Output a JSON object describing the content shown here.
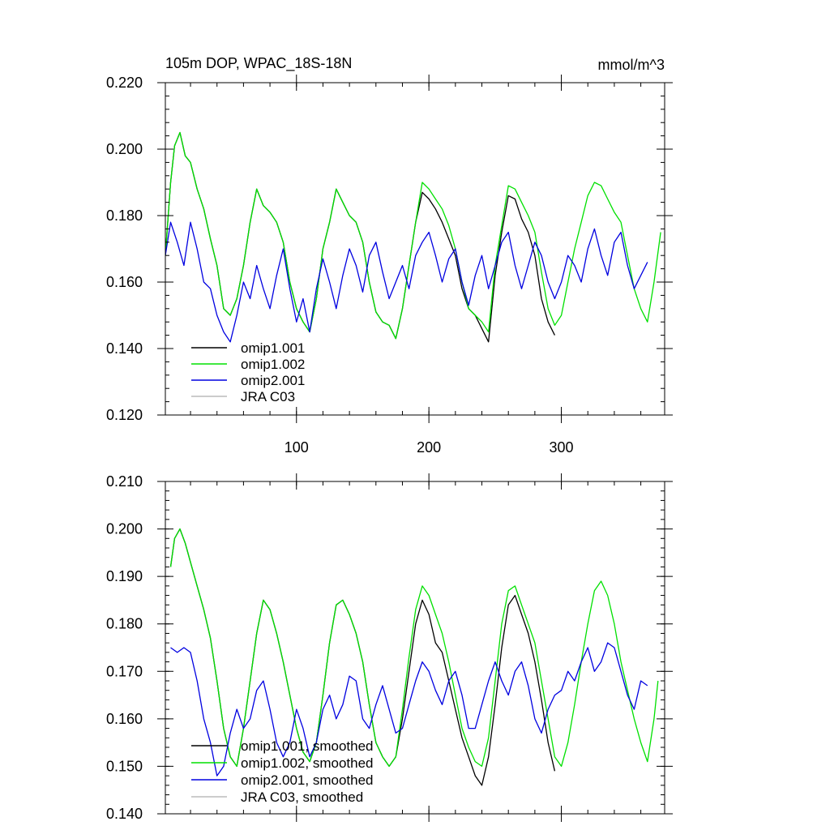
{
  "chart_data": [
    {
      "type": "line",
      "title": "105m DOP, WPAC_18S-18N",
      "units": "mmol/m^3",
      "xlim": [
        1,
        378
      ],
      "ylim": [
        0.12,
        0.22
      ],
      "yticks": [
        0.12,
        0.14,
        0.16,
        0.18,
        0.2,
        0.22
      ],
      "ytick_labels": [
        "0.120",
        "0.140",
        "0.160",
        "0.180",
        "0.200",
        "0.220"
      ],
      "xticks": [
        100,
        200,
        300
      ],
      "xtick_labels": [
        "100",
        "200",
        "300"
      ],
      "legend_position": "lower-left",
      "series": [
        {
          "name": "omip1.001",
          "color": "#000000",
          "x": [
            1,
            5,
            8,
            12,
            16,
            20,
            25,
            30,
            35,
            40,
            45,
            50,
            55,
            60,
            65,
            70,
            75,
            80,
            85,
            90,
            95,
            100,
            105,
            110,
            115,
            120,
            125,
            130,
            135,
            140,
            145,
            150,
            155,
            160,
            165,
            170,
            175,
            180,
            185,
            190,
            195,
            200,
            205,
            210,
            215,
            220,
            225,
            230,
            235,
            240,
            245,
            250,
            255,
            260,
            265,
            270,
            275,
            280,
            285,
            290,
            295
          ],
          "y": [
            0.168,
            0.19,
            0.201,
            0.205,
            0.198,
            0.196,
            0.188,
            0.182,
            0.173,
            0.165,
            0.152,
            0.15,
            0.155,
            0.165,
            0.178,
            0.188,
            0.183,
            0.181,
            0.178,
            0.172,
            0.16,
            0.152,
            0.148,
            0.145,
            0.155,
            0.17,
            0.178,
            0.188,
            0.184,
            0.18,
            0.178,
            0.172,
            0.16,
            0.151,
            0.148,
            0.147,
            0.143,
            0.152,
            0.165,
            0.178,
            0.187,
            0.185,
            0.182,
            0.178,
            0.173,
            0.168,
            0.158,
            0.152,
            0.15,
            0.146,
            0.142,
            0.162,
            0.175,
            0.186,
            0.185,
            0.179,
            0.175,
            0.168,
            0.155,
            0.148,
            0.144
          ]
        },
        {
          "name": "omip1.002",
          "color": "#00e000",
          "x": [
            1,
            5,
            8,
            12,
            16,
            20,
            25,
            30,
            35,
            40,
            45,
            50,
            55,
            60,
            65,
            70,
            75,
            80,
            85,
            90,
            95,
            100,
            105,
            110,
            115,
            120,
            125,
            130,
            135,
            140,
            145,
            150,
            155,
            160,
            165,
            170,
            175,
            180,
            185,
            190,
            195,
            200,
            205,
            210,
            215,
            220,
            225,
            230,
            235,
            240,
            245,
            250,
            255,
            260,
            265,
            270,
            275,
            280,
            285,
            290,
            295,
            300,
            305,
            310,
            315,
            320,
            325,
            330,
            335,
            340,
            345,
            350,
            355,
            360,
            365,
            370,
            375
          ],
          "y": [
            0.168,
            0.19,
            0.201,
            0.205,
            0.198,
            0.196,
            0.188,
            0.182,
            0.173,
            0.165,
            0.152,
            0.15,
            0.155,
            0.165,
            0.178,
            0.188,
            0.183,
            0.181,
            0.178,
            0.172,
            0.16,
            0.152,
            0.148,
            0.145,
            0.155,
            0.17,
            0.178,
            0.188,
            0.184,
            0.18,
            0.178,
            0.172,
            0.16,
            0.151,
            0.148,
            0.147,
            0.143,
            0.152,
            0.165,
            0.178,
            0.19,
            0.188,
            0.185,
            0.182,
            0.177,
            0.17,
            0.16,
            0.152,
            0.15,
            0.148,
            0.145,
            0.165,
            0.177,
            0.189,
            0.188,
            0.184,
            0.18,
            0.175,
            0.163,
            0.152,
            0.147,
            0.15,
            0.16,
            0.17,
            0.178,
            0.186,
            0.19,
            0.189,
            0.185,
            0.181,
            0.178,
            0.168,
            0.158,
            0.152,
            0.148,
            0.16,
            0.175
          ]
        },
        {
          "name": "omip2.001",
          "color": "#0000e0",
          "x": [
            1,
            5,
            10,
            15,
            20,
            25,
            30,
            35,
            40,
            45,
            50,
            55,
            60,
            65,
            70,
            75,
            80,
            85,
            90,
            95,
            100,
            105,
            110,
            115,
            120,
            125,
            130,
            135,
            140,
            145,
            150,
            155,
            160,
            165,
            170,
            175,
            180,
            185,
            190,
            195,
            200,
            205,
            210,
            215,
            220,
            225,
            230,
            235,
            240,
            245,
            250,
            255,
            260,
            265,
            270,
            275,
            280,
            285,
            290,
            295,
            300,
            305,
            310,
            315,
            320,
            325,
            330,
            335,
            340,
            345,
            350,
            355,
            360,
            365
          ],
          "y": [
            0.168,
            0.178,
            0.172,
            0.165,
            0.178,
            0.17,
            0.16,
            0.158,
            0.15,
            0.145,
            0.142,
            0.15,
            0.16,
            0.155,
            0.165,
            0.158,
            0.152,
            0.162,
            0.17,
            0.158,
            0.148,
            0.155,
            0.145,
            0.158,
            0.167,
            0.16,
            0.152,
            0.162,
            0.17,
            0.165,
            0.157,
            0.168,
            0.172,
            0.163,
            0.155,
            0.16,
            0.165,
            0.158,
            0.168,
            0.172,
            0.175,
            0.168,
            0.16,
            0.167,
            0.17,
            0.16,
            0.153,
            0.162,
            0.168,
            0.158,
            0.165,
            0.172,
            0.175,
            0.165,
            0.158,
            0.165,
            0.172,
            0.168,
            0.16,
            0.155,
            0.16,
            0.168,
            0.165,
            0.16,
            0.17,
            0.176,
            0.168,
            0.162,
            0.172,
            0.175,
            0.165,
            0.158,
            0.162,
            0.166
          ]
        },
        {
          "name": "JRA C03",
          "color": "#bbbbbb",
          "x": [],
          "y": []
        }
      ]
    },
    {
      "type": "line",
      "title": "",
      "xlim": [
        1,
        378
      ],
      "ylim": [
        0.14,
        0.21
      ],
      "yticks": [
        0.14,
        0.15,
        0.16,
        0.17,
        0.18,
        0.19,
        0.2,
        0.21
      ],
      "ytick_labels": [
        "0.140",
        "0.150",
        "0.160",
        "0.170",
        "0.180",
        "0.190",
        "0.200",
        "0.210"
      ],
      "xticks": [
        100,
        200,
        300
      ],
      "xtick_labels": [],
      "legend_position": "lower-left",
      "series": [
        {
          "name": "omip1.001, smoothed",
          "color": "#000000",
          "x": [
            5,
            8,
            12,
            16,
            20,
            25,
            30,
            35,
            40,
            45,
            50,
            55,
            60,
            65,
            70,
            75,
            80,
            85,
            90,
            95,
            100,
            105,
            110,
            115,
            120,
            125,
            130,
            135,
            140,
            145,
            150,
            155,
            160,
            165,
            170,
            175,
            180,
            185,
            190,
            195,
            200,
            205,
            210,
            215,
            220,
            225,
            230,
            235,
            240,
            245,
            250,
            255,
            260,
            265,
            270,
            275,
            280,
            285,
            290,
            295
          ],
          "y": [
            0.192,
            0.198,
            0.2,
            0.197,
            0.193,
            0.188,
            0.183,
            0.177,
            0.168,
            0.158,
            0.152,
            0.15,
            0.158,
            0.168,
            0.178,
            0.185,
            0.183,
            0.178,
            0.172,
            0.165,
            0.158,
            0.153,
            0.151,
            0.155,
            0.165,
            0.176,
            0.184,
            0.185,
            0.182,
            0.178,
            0.172,
            0.163,
            0.155,
            0.152,
            0.15,
            0.152,
            0.16,
            0.17,
            0.18,
            0.185,
            0.182,
            0.176,
            0.174,
            0.168,
            0.162,
            0.156,
            0.152,
            0.148,
            0.146,
            0.152,
            0.163,
            0.175,
            0.184,
            0.186,
            0.182,
            0.178,
            0.172,
            0.164,
            0.155,
            0.149
          ]
        },
        {
          "name": "omip1.002, smoothed",
          "color": "#00e000",
          "x": [
            5,
            8,
            12,
            16,
            20,
            25,
            30,
            35,
            40,
            45,
            50,
            55,
            60,
            65,
            70,
            75,
            80,
            85,
            90,
            95,
            100,
            105,
            110,
            115,
            120,
            125,
            130,
            135,
            140,
            145,
            150,
            155,
            160,
            165,
            170,
            175,
            180,
            185,
            190,
            195,
            200,
            205,
            210,
            215,
            220,
            225,
            230,
            235,
            240,
            245,
            250,
            255,
            260,
            265,
            270,
            275,
            280,
            285,
            290,
            295,
            300,
            305,
            310,
            315,
            320,
            325,
            330,
            335,
            340,
            345,
            350,
            355,
            360,
            365,
            370,
            373
          ],
          "y": [
            0.192,
            0.198,
            0.2,
            0.197,
            0.193,
            0.188,
            0.183,
            0.177,
            0.168,
            0.158,
            0.152,
            0.15,
            0.158,
            0.168,
            0.178,
            0.185,
            0.183,
            0.178,
            0.172,
            0.165,
            0.158,
            0.153,
            0.151,
            0.155,
            0.165,
            0.176,
            0.184,
            0.185,
            0.182,
            0.178,
            0.172,
            0.163,
            0.155,
            0.152,
            0.15,
            0.152,
            0.162,
            0.173,
            0.183,
            0.188,
            0.186,
            0.182,
            0.178,
            0.172,
            0.165,
            0.158,
            0.154,
            0.151,
            0.15,
            0.156,
            0.168,
            0.18,
            0.187,
            0.188,
            0.184,
            0.18,
            0.176,
            0.168,
            0.16,
            0.152,
            0.15,
            0.155,
            0.163,
            0.172,
            0.18,
            0.187,
            0.189,
            0.186,
            0.18,
            0.172,
            0.166,
            0.16,
            0.155,
            0.151,
            0.16,
            0.168
          ]
        },
        {
          "name": "omip2.001, smoothed",
          "color": "#0000e0",
          "x": [
            5,
            10,
            15,
            20,
            25,
            30,
            35,
            40,
            45,
            50,
            55,
            60,
            65,
            70,
            75,
            80,
            85,
            90,
            95,
            100,
            105,
            110,
            115,
            120,
            125,
            130,
            135,
            140,
            145,
            150,
            155,
            160,
            165,
            170,
            175,
            180,
            185,
            190,
            195,
            200,
            205,
            210,
            215,
            220,
            225,
            230,
            235,
            240,
            245,
            250,
            255,
            260,
            265,
            270,
            275,
            280,
            285,
            290,
            295,
            300,
            305,
            310,
            315,
            320,
            325,
            330,
            335,
            340,
            345,
            350,
            355,
            360,
            365
          ],
          "y": [
            0.175,
            0.174,
            0.175,
            0.174,
            0.168,
            0.16,
            0.155,
            0.148,
            0.15,
            0.157,
            0.162,
            0.158,
            0.16,
            0.166,
            0.168,
            0.162,
            0.155,
            0.152,
            0.155,
            0.162,
            0.158,
            0.152,
            0.155,
            0.162,
            0.165,
            0.16,
            0.163,
            0.169,
            0.168,
            0.16,
            0.158,
            0.163,
            0.167,
            0.162,
            0.157,
            0.158,
            0.163,
            0.168,
            0.172,
            0.17,
            0.166,
            0.163,
            0.168,
            0.17,
            0.165,
            0.158,
            0.158,
            0.163,
            0.168,
            0.172,
            0.168,
            0.165,
            0.17,
            0.172,
            0.167,
            0.16,
            0.157,
            0.162,
            0.165,
            0.166,
            0.17,
            0.168,
            0.172,
            0.175,
            0.17,
            0.172,
            0.176,
            0.175,
            0.17,
            0.165,
            0.162,
            0.168,
            0.167
          ]
        },
        {
          "name": "JRA C03, smoothed",
          "color": "#bbbbbb",
          "x": [],
          "y": []
        }
      ]
    }
  ]
}
